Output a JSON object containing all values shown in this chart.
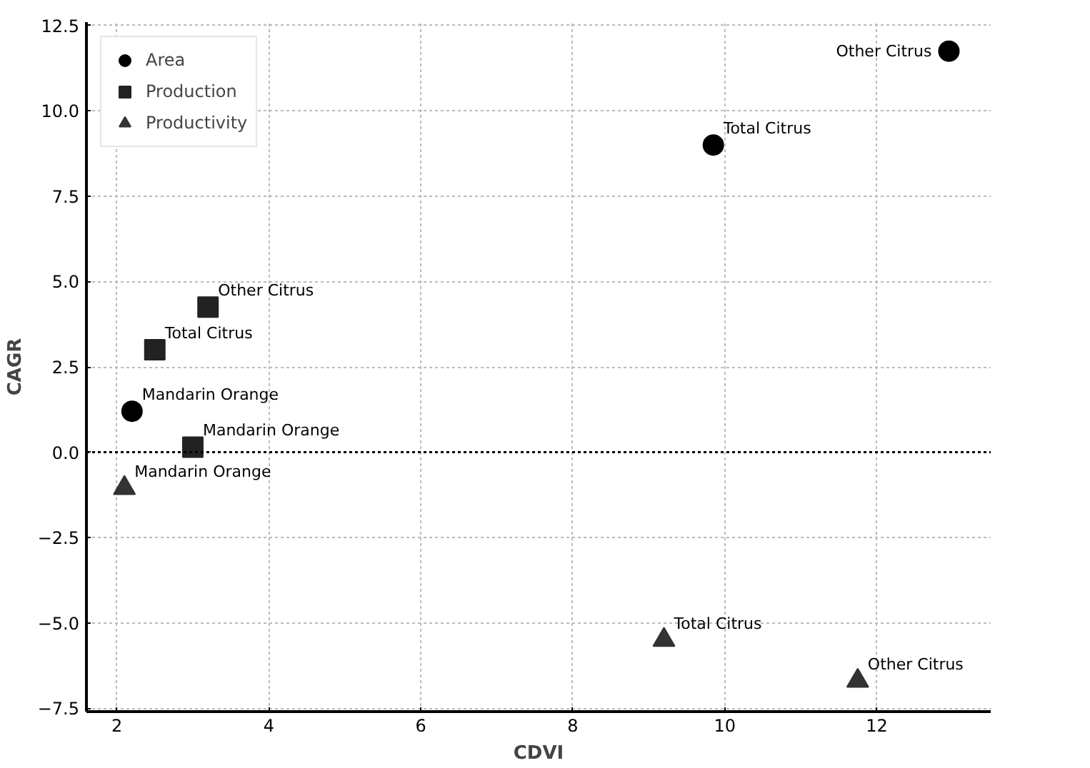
{
  "chart_data": {
    "type": "scatter",
    "xlabel": "CDVI",
    "ylabel": "CAGR",
    "xlim": [
      1.6,
      13.5
    ],
    "xticks": [
      2,
      4,
      6,
      8,
      10,
      12
    ],
    "ylim": [
      -7.6,
      12.6
    ],
    "yticks": [
      -7.5,
      {
        "value": -5,
        "label": "−5.0"
      },
      -2.5,
      {
        "value": 0,
        "label": "0.0"
      },
      2.5,
      {
        "value": 5,
        "label": "5.0"
      },
      7.5,
      {
        "value": 10,
        "label": "10.0"
      },
      12.5
    ],
    "grid": true,
    "legend": "top left",
    "series": [
      {
        "name": "Area",
        "color": "#000000",
        "marker": "circle",
        "x": [
          2.2,
          9.85,
          12.95
        ],
        "values": [
          1.2,
          9.0,
          11.75
        ]
      },
      {
        "name": "Production",
        "color": "#222222",
        "marker": "square",
        "x": [
          3.0,
          2.5,
          3.2
        ],
        "values": [
          0.15,
          3.0,
          4.25
        ]
      },
      {
        "name": "Productivity",
        "color": "#333333",
        "marker": "triangle",
        "x": [
          2.1,
          9.2,
          11.75
        ],
        "values": [
          -1.05,
          -5.5,
          -6.7
        ]
      }
    ],
    "ref_lines": [
      {
        "axis": "y",
        "value": 0,
        "color": "#000000",
        "line_style": "dotted"
      }
    ],
    "annotations": [
      {
        "text": "Mandarin Orange",
        "x": 2.2,
        "y": 1.2
      },
      {
        "text": "Total Citrus",
        "x": 9.85,
        "y": 9.0
      },
      {
        "text": "Other Citrus",
        "x": 12.95,
        "y": 11.75
      },
      {
        "text": "Mandarin Orange",
        "x": 3.0,
        "y": 0.15
      },
      {
        "text": "Total Citrus",
        "x": 2.5,
        "y": 3.0
      },
      {
        "text": "Other Citrus",
        "x": 3.2,
        "y": 4.25
      },
      {
        "text": "Mandarin Orange",
        "x": 2.1,
        "y": -1.05
      },
      {
        "text": "Total Citrus",
        "x": 9.2,
        "y": -5.5
      },
      {
        "text": "Other Citrus",
        "x": 11.75,
        "y": -6.7
      }
    ]
  }
}
